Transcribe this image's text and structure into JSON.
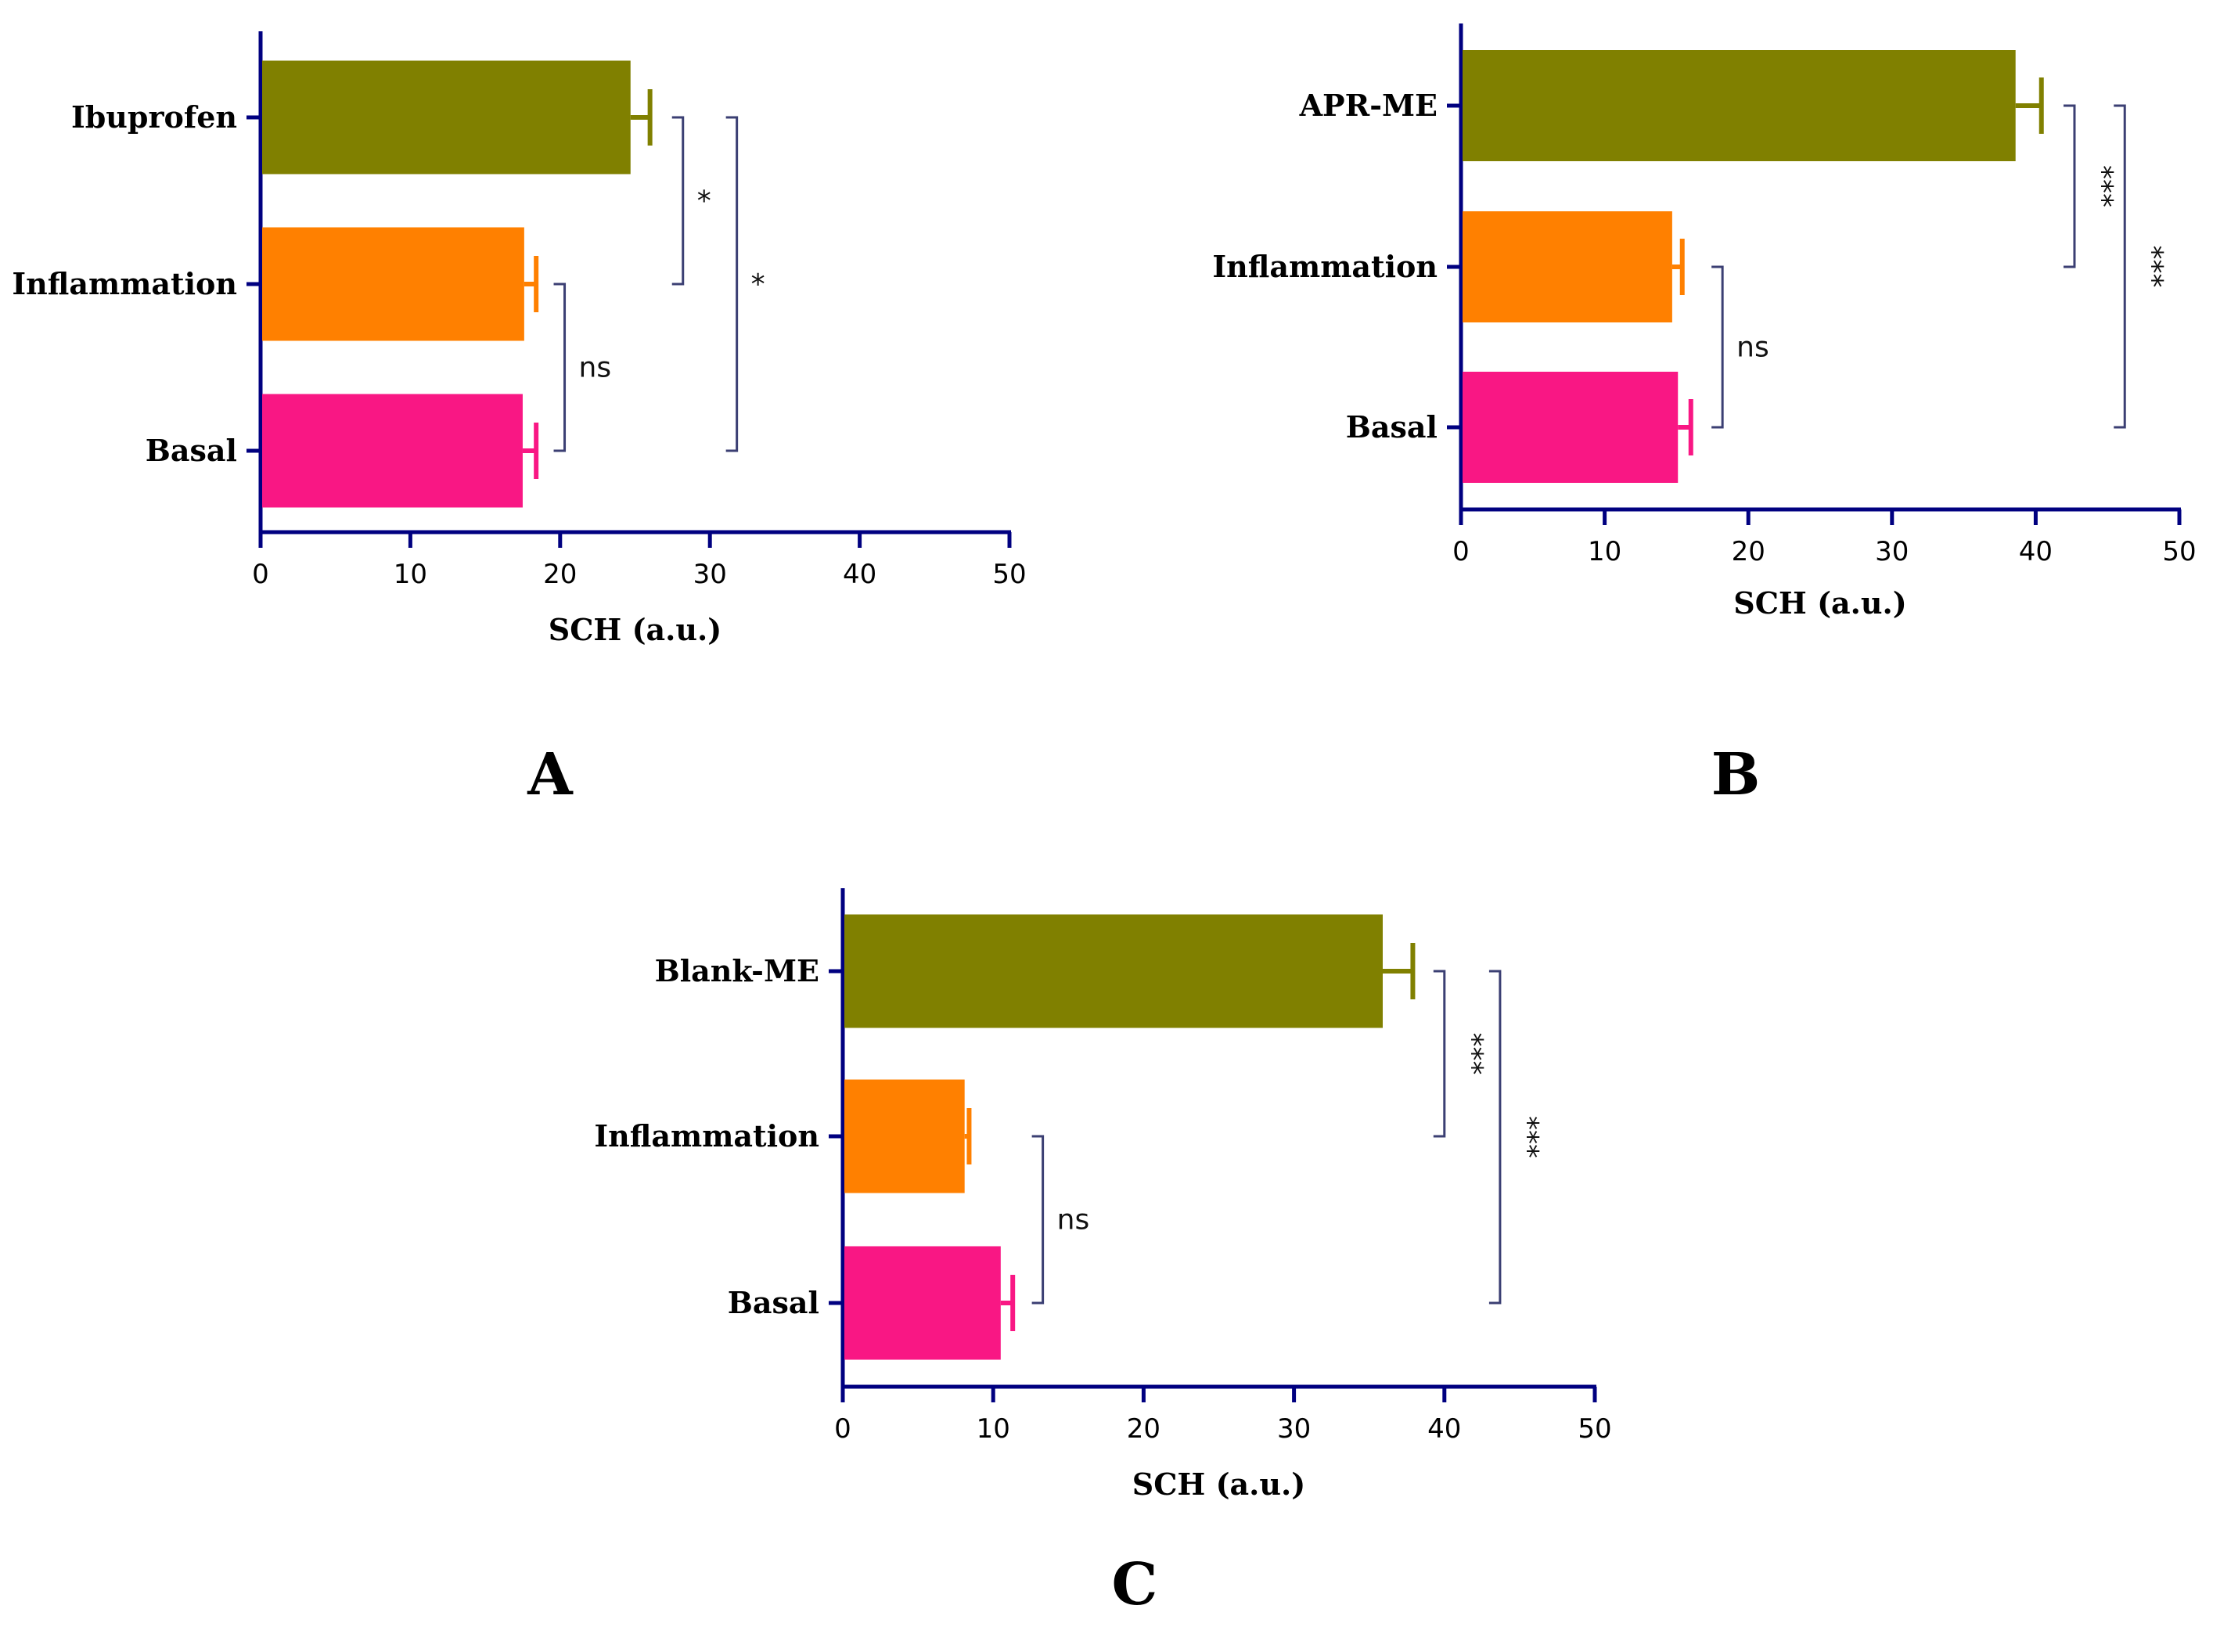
{
  "colors": {
    "axis": "#000080",
    "bracket": "#3b3f73",
    "treatment": "#808000",
    "inflammation": "#ff8000",
    "basal": "#f91784"
  },
  "chart_data": [
    {
      "type": "bar",
      "orientation": "horizontal",
      "panel": "A",
      "categories": [
        "Ibuprofen",
        "Inflammation",
        "Basal"
      ],
      "values": [
        24.7,
        17.6,
        17.5
      ],
      "errors": [
        1.3,
        0.8,
        0.9
      ],
      "colors": [
        "#808000",
        "#ff8000",
        "#f91784"
      ],
      "xlabel": "SCH (a.u.)",
      "xlim": [
        0,
        50
      ],
      "xticks": [
        0,
        10,
        20,
        30,
        40,
        50
      ],
      "significance": [
        {
          "from": "Ibuprofen",
          "to": "Inflammation",
          "label": "*",
          "x": 28.2,
          "rotated": false
        },
        {
          "from": "Inflammation",
          "to": "Basal",
          "label": "ns",
          "x": 20.3,
          "rotated": false
        },
        {
          "from": "Ibuprofen",
          "to": "Basal",
          "label": "*",
          "x": 31.8,
          "rotated": false
        }
      ]
    },
    {
      "type": "bar",
      "orientation": "horizontal",
      "panel": "B",
      "categories": [
        "APR-ME",
        "Inflammation",
        "Basal"
      ],
      "values": [
        38.6,
        14.7,
        15.1
      ],
      "errors": [
        1.8,
        0.7,
        0.9
      ],
      "colors": [
        "#808000",
        "#ff8000",
        "#f91784"
      ],
      "xlabel": "SCH (a.u.)",
      "xlim": [
        0,
        50
      ],
      "xticks": [
        0,
        10,
        20,
        30,
        40,
        50
      ],
      "significance": [
        {
          "from": "APR-ME",
          "to": "Inflammation",
          "label": "***",
          "x": 42.7,
          "rotated": true
        },
        {
          "from": "Inflammation",
          "to": "Basal",
          "label": "ns",
          "x": 18.2,
          "rotated": false
        },
        {
          "from": "APR-ME",
          "to": "Basal",
          "label": "***",
          "x": 46.2,
          "rotated": true
        }
      ]
    },
    {
      "type": "bar",
      "orientation": "horizontal",
      "panel": "C",
      "categories": [
        "Blank-ME",
        "Inflammation",
        "Basal"
      ],
      "values": [
        35.9,
        8.1,
        10.5
      ],
      "errors": [
        2.0,
        0.3,
        0.8
      ],
      "colors": [
        "#808000",
        "#ff8000",
        "#f91784"
      ],
      "xlabel": "SCH (a.u.)",
      "xlim": [
        0,
        50
      ],
      "xticks": [
        0,
        10,
        20,
        30,
        40,
        50
      ],
      "significance": [
        {
          "from": "Blank-ME",
          "to": "Inflammation",
          "label": "***",
          "x": 40.0,
          "rotated": true
        },
        {
          "from": "Inflammation",
          "to": "Basal",
          "label": "ns",
          "x": 13.3,
          "rotated": false
        },
        {
          "from": "Blank-ME",
          "to": "Basal",
          "label": "***",
          "x": 43.7,
          "rotated": true
        }
      ]
    }
  ]
}
